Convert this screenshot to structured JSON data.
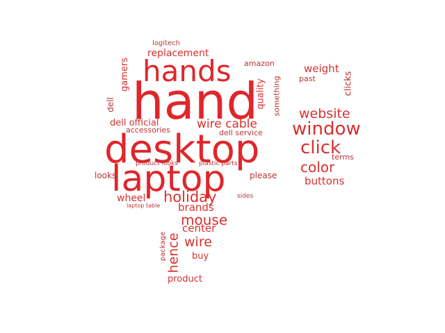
{
  "colors": {
    "strong": "#e0262b",
    "medium": "#d7302f",
    "light": "#b83233"
  },
  "words": [
    "hand",
    "desktop",
    "laptop",
    "hands",
    "window",
    "click",
    "website",
    "color",
    "holiday",
    "mouse",
    "wire cable",
    "hence",
    "wire",
    "center",
    "brands",
    "weight",
    "buttons",
    "replacement",
    "dell official",
    "wheel",
    "buy",
    "product",
    "quality",
    "gamers",
    "dell",
    "something",
    "clicks",
    "amazon",
    "past",
    "looks",
    "please",
    "accessories",
    "dell service",
    "terms",
    "logitech",
    "package",
    "product looks",
    "plastic parts",
    "sides",
    "laptop table"
  ]
}
